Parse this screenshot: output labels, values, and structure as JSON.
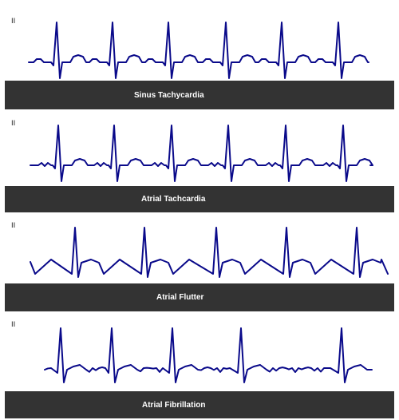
{
  "strips": [
    {
      "lead": "II",
      "label": "Sinus Tachycardia",
      "rhythm": "sinus-tachycardia"
    },
    {
      "lead": "II",
      "label": "Atrial Tachcardia",
      "rhythm": "atrial-tachycardia"
    },
    {
      "lead": "II",
      "label": "Atrial Flutter",
      "rhythm": "atrial-flutter"
    },
    {
      "lead": "II",
      "label": "Atrial Fibrillation",
      "rhythm": "atrial-fibrillation"
    }
  ],
  "colors": {
    "trace": "#0a0a8a",
    "bar": "#333333",
    "bar_text": "#ffffff"
  }
}
